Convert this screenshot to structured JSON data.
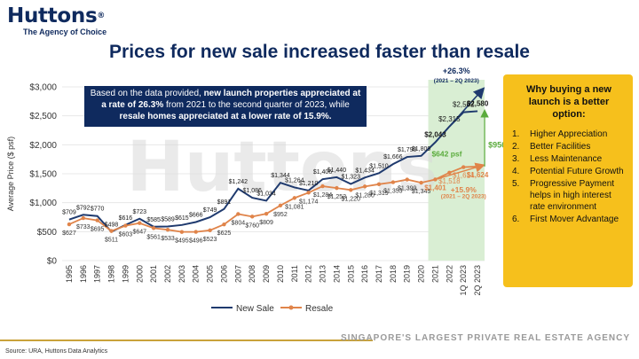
{
  "header": {
    "brand": "Huttons",
    "trademark": "®",
    "tagline": "The Agency of Choice"
  },
  "title": "Prices for new sale increased faster than resale",
  "callout": {
    "p1": "Based on the data provided, ",
    "b1": "new launch properties appreciated at a rate of 26.3%",
    "p2": " from 2021 to the second quarter of 2023, while ",
    "b2": "resale homes appreciated at a lower rate of 15.9%.",
    "p3": ""
  },
  "side_panel": {
    "title": "Why buying a new launch is a better option:",
    "items": [
      {
        "num": "1.",
        "text": "Higher Appreciation"
      },
      {
        "num": "2.",
        "text": "Better Facilities"
      },
      {
        "num": "3.",
        "text": "Less Maintenance"
      },
      {
        "num": "4.",
        "text": "Potential Future Growth"
      },
      {
        "num": "5.",
        "text": "Progressive Payment helps in high interest rate environment"
      },
      {
        "num": "6.",
        "text": "First Mover Advantage"
      }
    ]
  },
  "footer": {
    "text": "SINGAPORE'S LARGEST PRIVATE REAL ESTATE AGENCY",
    "source": "Source: URA, Huttons Data Analytics"
  },
  "colors": {
    "navy": "#0f2a5e",
    "new_sale": "#1f3a6e",
    "resale": "#e0844a",
    "highlight": "#d9eed3",
    "green": "#5aab3c",
    "panel": "#f6c01c",
    "gold": "#c9a23a"
  },
  "chart_data": {
    "type": "line",
    "ylabel": "Average Price ($ psf)",
    "ylim": [
      0,
      3000
    ],
    "yticks": [
      0,
      500,
      1000,
      1500,
      2000,
      2500,
      3000
    ],
    "ytick_labels": [
      "$0",
      "$500",
      "$1,000",
      "$1,500",
      "$2,000",
      "$2,500",
      "$3,000"
    ],
    "grid": true,
    "legend_position": "bottom",
    "categories": [
      "1995",
      "1996",
      "1997",
      "1998",
      "1999",
      "2000",
      "2001",
      "2002",
      "2003",
      "2004",
      "2005",
      "2006",
      "2007",
      "2008",
      "2009",
      "2010",
      "2011",
      "2012",
      "2013",
      "2014",
      "2015",
      "2016",
      "2017",
      "2018",
      "2019",
      "2020",
      "2021",
      "2022",
      "1Q 2023",
      "2Q 2023"
    ],
    "series": [
      {
        "name": "New Sale",
        "values": [
          709,
          792,
          770,
          498,
          616,
          723,
          585,
          589,
          615,
          666,
          749,
          891,
          1242,
          1086,
          1034,
          1344,
          1264,
          1210,
          1406,
          1440,
          1323,
          1434,
          1510,
          1666,
          1790,
          1809,
          2043,
          2315,
          2562,
          2580
        ],
        "labels": [
          "$709",
          "$792",
          "$770",
          "$498",
          "$616",
          "$723",
          "$585",
          "$589",
          "$615",
          "$666",
          "$749",
          "$891",
          "$1,242",
          "$1,086",
          "$1,034",
          "$1,344",
          "$1,264",
          "$1,210",
          "$1,406",
          "$1,440",
          "$1,323",
          "$1,434",
          "$1,510",
          "$1,666",
          "$1,790",
          "$1,809",
          "$2,043",
          "$2,315",
          "$2,562",
          "$2,580"
        ]
      },
      {
        "name": "Resale",
        "values": [
          627,
          733,
          695,
          511,
          603,
          647,
          561,
          533,
          495,
          496,
          523,
          625,
          804,
          760,
          809,
          952,
          1081,
          1174,
          1284,
          1253,
          1220,
          1280,
          1319,
          1353,
          1399,
          1345,
          1401,
          1518,
          1614,
          1624
        ],
        "labels": [
          "$627",
          "$733",
          "$695",
          "$511",
          "$603",
          "$647",
          "$561",
          "$533",
          "$495",
          "$496",
          "$523",
          "$625",
          "$804",
          "$760",
          "$809",
          "$952",
          "$1,081",
          "$1,174",
          "$1,284",
          "$1,253",
          "$1,220",
          "$1,280",
          "$1,319",
          "$1,353",
          "$1,399",
          "$1,345",
          "$1,401",
          "$1,518",
          "$1,614",
          "$1,624"
        ]
      }
    ],
    "annotations": {
      "new_growth": "+26.3%",
      "new_period": "(2021 – 2Q 2023)",
      "new_diff": "$956 psf",
      "resale_growth": "+15.9%",
      "resale_period": "(2021 – 2Q 2023)",
      "resale_diff": "$642 psf"
    },
    "watermark": "Huttons"
  }
}
